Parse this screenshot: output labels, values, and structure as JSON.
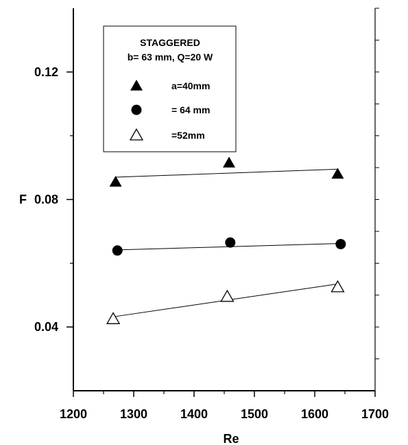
{
  "chart_data": {
    "type": "scatter",
    "title": "",
    "xlabel": "Re",
    "ylabel": "F",
    "xlim": [
      1200,
      1700
    ],
    "ylim": [
      0.02,
      0.14
    ],
    "xticks": [
      1200,
      1300,
      1400,
      1500,
      1600,
      1700
    ],
    "xtick_labels": [
      "1200",
      "1300",
      "1400",
      "1500",
      "1600",
      "1700"
    ],
    "yticks": [
      0.04,
      0.08,
      0.12
    ],
    "ytick_labels": [
      "0.04",
      "0.08",
      "0.12"
    ],
    "grid": false,
    "legend": {
      "position": "top-left",
      "title_line1": "STAGGERED",
      "title_line2": "b= 63 mm, Q=20 W"
    },
    "series": [
      {
        "name": "a=40mm",
        "marker": "filled-triangle",
        "points": [
          [
            1270,
            0.0855
          ],
          [
            1458,
            0.0915
          ],
          [
            1638,
            0.088
          ]
        ],
        "fit": [
          [
            1270,
            0.087
          ],
          [
            1638,
            0.0895
          ]
        ]
      },
      {
        "name": "= 64 mm",
        "marker": "filled-circle",
        "points": [
          [
            1273,
            0.064
          ],
          [
            1460,
            0.0665
          ],
          [
            1643,
            0.066
          ]
        ],
        "fit": [
          [
            1273,
            0.0642
          ],
          [
            1643,
            0.0662
          ]
        ]
      },
      {
        "name": "=52mm",
        "marker": "open-triangle",
        "points": [
          [
            1266,
            0.0425
          ],
          [
            1455,
            0.0495
          ],
          [
            1638,
            0.0525
          ]
        ],
        "fit": [
          [
            1266,
            0.0432
          ],
          [
            1638,
            0.0535
          ]
        ]
      }
    ]
  }
}
